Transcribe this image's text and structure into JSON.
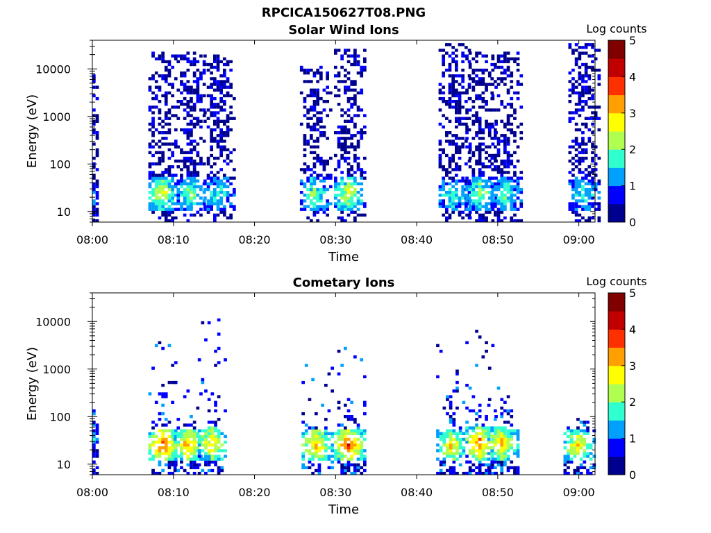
{
  "figure": {
    "title": "RPCICA150627T08.PNG"
  },
  "colormap": [
    "#00008f",
    "#0000ff",
    "#00a0ff",
    "#30ffcf",
    "#b0ff50",
    "#ffff00",
    "#ffa000",
    "#ff3000",
    "#c00000",
    "#800000"
  ],
  "chart_data": [
    {
      "type": "heatmap",
      "title": "Solar Wind Ions",
      "xlabel": "Time",
      "ylabel": "Energy (eV)",
      "x_range": [
        "08:00",
        "09:02"
      ],
      "x_ticks": [
        "08:00",
        "08:10",
        "08:20",
        "08:30",
        "08:40",
        "08:50",
        "09:00"
      ],
      "y_scale": "log",
      "y_range": [
        6,
        40000
      ],
      "y_ticks": [
        "10",
        "100",
        "1000",
        "10000"
      ],
      "colorbar": {
        "label": "Log counts",
        "range": [
          0,
          5
        ],
        "ticks": [
          "0",
          "1",
          "2",
          "3",
          "4",
          "5"
        ]
      },
      "bursts": [
        {
          "t_min": 0.2,
          "e_peak": 22,
          "logcount_peak": 1.0,
          "e_max": 14000
        },
        {
          "t_min": 8.7,
          "e_peak": 24,
          "logcount_peak": 2.6,
          "e_max": 22000
        },
        {
          "t_min": 12.2,
          "e_peak": 24,
          "logcount_peak": 2.2,
          "e_max": 22000
        },
        {
          "t_min": 15.5,
          "e_peak": 24,
          "logcount_peak": 1.8,
          "e_max": 20000
        },
        {
          "t_min": 27.4,
          "e_peak": 24,
          "logcount_peak": 2.2,
          "e_max": 12000
        },
        {
          "t_min": 31.6,
          "e_peak": 24,
          "logcount_peak": 2.6,
          "e_max": 28000
        },
        {
          "t_min": 44.5,
          "e_peak": 22,
          "logcount_peak": 1.8,
          "e_max": 36000
        },
        {
          "t_min": 47.8,
          "e_peak": 24,
          "logcount_peak": 2.2,
          "e_max": 22000
        },
        {
          "t_min": 50.9,
          "e_peak": 24,
          "logcount_peak": 2.0,
          "e_max": 22000
        },
        {
          "t_min": 60.5,
          "e_peak": 24,
          "logcount_peak": 1.8,
          "e_max": 36000
        }
      ]
    },
    {
      "type": "heatmap",
      "title": "Cometary Ions",
      "xlabel": "Time",
      "ylabel": "Energy (eV)",
      "x_range": [
        "08:00",
        "09:02"
      ],
      "x_ticks": [
        "08:00",
        "08:10",
        "08:20",
        "08:30",
        "08:40",
        "08:50",
        "09:00"
      ],
      "y_scale": "log",
      "y_range": [
        6,
        40000
      ],
      "y_ticks": [
        "10",
        "100",
        "1000",
        "10000"
      ],
      "colorbar": {
        "label": "Log counts",
        "range": [
          0,
          5
        ],
        "ticks": [
          "0",
          "1",
          "2",
          "3",
          "4",
          "5"
        ]
      },
      "bursts": [
        {
          "t_min": 0.2,
          "e_peak": 35,
          "logcount_peak": 1.2,
          "e_max": 150
        },
        {
          "t_min": 8.7,
          "e_peak": 25,
          "logcount_peak": 3.8,
          "e_max": 7000
        },
        {
          "t_min": 11.8,
          "e_peak": 25,
          "logcount_peak": 3.4,
          "e_max": 2000
        },
        {
          "t_min": 14.8,
          "e_peak": 28,
          "logcount_peak": 3.0,
          "e_max": 15000
        },
        {
          "t_min": 27.6,
          "e_peak": 25,
          "logcount_peak": 3.2,
          "e_max": 2000
        },
        {
          "t_min": 31.6,
          "e_peak": 25,
          "logcount_peak": 3.8,
          "e_max": 3000
        },
        {
          "t_min": 44.2,
          "e_peak": 25,
          "logcount_peak": 3.0,
          "e_max": 3500
        },
        {
          "t_min": 47.8,
          "e_peak": 28,
          "logcount_peak": 3.6,
          "e_max": 7000
        },
        {
          "t_min": 50.5,
          "e_peak": 28,
          "logcount_peak": 3.2,
          "e_max": 500
        },
        {
          "t_min": 59.9,
          "e_peak": 25,
          "logcount_peak": 3.0,
          "e_max": 100
        }
      ]
    }
  ]
}
